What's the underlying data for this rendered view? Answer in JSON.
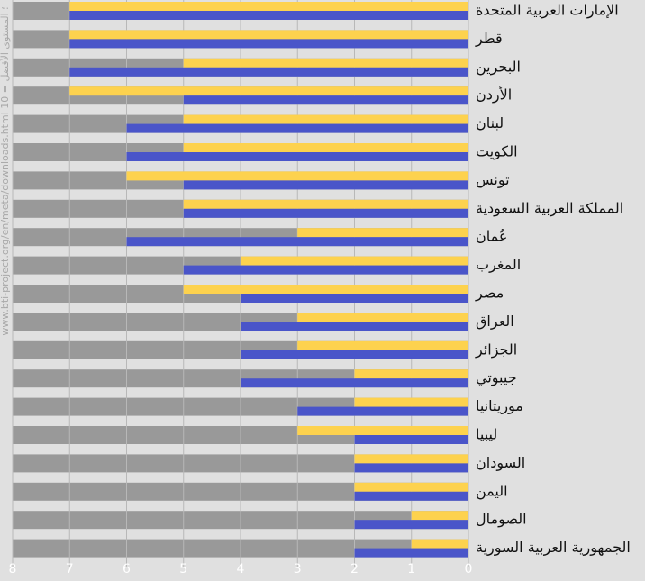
{
  "chart_data": {
    "type": "barh",
    "source_note": "www.bti-project.org/en/meta/downloads.html ؛ المستوى الأفضل = 10",
    "categories": [
      "الإمارات العربية المتحدة",
      "قطر",
      "البحرين",
      "الأردن",
      "لبنان",
      "الكويت",
      "تونس",
      "المملكة العربية السعودية",
      "عُمان",
      "المغرب",
      "مصر",
      "العراق",
      "الجزائر",
      "جيبوتي",
      "موريتانيا",
      "ليبيا",
      "السودان",
      "اليمن",
      "الصومال",
      "الجمهورية العربية السورية"
    ],
    "series": [
      {
        "color": "#fdd24e",
        "values": [
          7,
          7,
          5,
          7,
          5,
          5,
          6,
          5,
          3,
          4,
          5,
          3,
          3,
          2,
          2,
          3,
          2,
          2,
          1,
          1
        ]
      },
      {
        "color": "#4a55c9",
        "values": [
          7,
          7,
          7,
          5,
          6,
          6,
          5,
          5,
          6,
          5,
          4,
          4,
          4,
          4,
          3,
          2,
          2,
          2,
          2,
          2
        ]
      }
    ],
    "xlim": [
      8,
      0
    ],
    "xticks": [
      8,
      7,
      6,
      5,
      4,
      3,
      2,
      1,
      0
    ],
    "grid": true
  }
}
